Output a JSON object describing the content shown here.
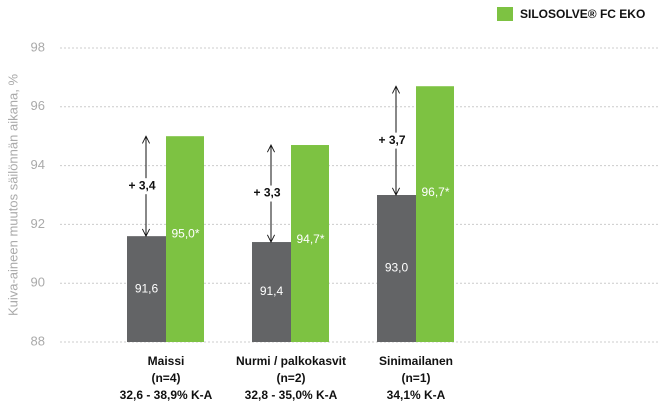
{
  "chart_data": {
    "type": "bar",
    "y_label": "Kuiva-aineen muutos säilönnän aikana, %",
    "categories": [
      [
        "Maissi",
        "(n=4)",
        "32,6 - 38,9% K-A"
      ],
      [
        "Nurmi / palkokasvit",
        "(n=2)",
        "32,8 - 35,0% K-A"
      ],
      [
        "Sinimailanen",
        "(n=1)",
        "34,1% K-A"
      ]
    ],
    "series": [
      {
        "color": "#636466",
        "values": [
          91.6,
          91.4,
          93.0
        ],
        "value_labels": [
          "91,6",
          "91,4",
          "93,0"
        ]
      },
      {
        "name": "SILOSOLVE® FC EKO",
        "color": "#7dc242",
        "values": [
          95.0,
          94.7,
          96.7
        ],
        "value_labels": [
          "95,0*",
          "94,7*",
          "96,7*"
        ]
      }
    ],
    "annotations": [
      "+ 3,4",
      "+ 3,3",
      "+ 3,7"
    ],
    "ylim": [
      88,
      98
    ],
    "yticks": [
      88,
      90,
      92,
      94,
      96,
      98
    ],
    "grid": true,
    "legend": "top-right"
  }
}
